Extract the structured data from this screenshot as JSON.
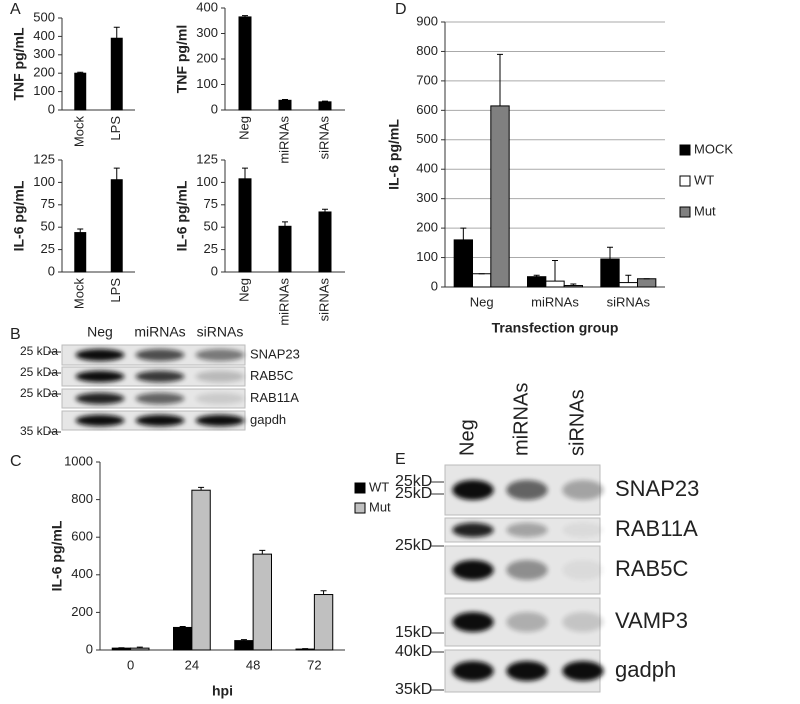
{
  "chart_data": [
    {
      "type": "bar",
      "panel": "A",
      "ylabel": "TNF pg/mL",
      "categories": [
        "Mock",
        "LPS"
      ],
      "values": [
        200,
        390
      ],
      "errors": [
        5,
        60
      ],
      "color": "#000000",
      "ylim": [
        0,
        500
      ],
      "yticks": [
        0,
        100,
        200,
        300,
        400,
        500
      ]
    },
    {
      "type": "bar",
      "ylabel": "TNF pg/ml",
      "categories": [
        "Neg",
        "miRNAs",
        "siRNAs"
      ],
      "values": [
        365,
        38,
        32
      ],
      "errors": [
        5,
        3,
        3
      ],
      "color": "#000000",
      "ylim": [
        0,
        400
      ],
      "yticks": [
        0,
        100,
        200,
        300,
        400
      ]
    },
    {
      "type": "bar",
      "ylabel": "IL-6 pg/mL",
      "categories": [
        "Mock",
        "LPS"
      ],
      "values": [
        44,
        103
      ],
      "errors": [
        4,
        13
      ],
      "color": "#000000",
      "ylim": [
        0,
        125
      ],
      "yticks": [
        0,
        25,
        50,
        75,
        100,
        125
      ]
    },
    {
      "type": "bar",
      "ylabel": "IL-6 pg/mL",
      "categories": [
        "Neg",
        "miRNAs",
        "siRNAs"
      ],
      "values": [
        104,
        51,
        67
      ],
      "errors": [
        12,
        5,
        3
      ],
      "color": "#000000",
      "ylim": [
        0,
        125
      ],
      "yticks": [
        0,
        25,
        50,
        75,
        100,
        125
      ]
    },
    {
      "type": "bar",
      "panel": "C",
      "ylabel": "IL-6 pg/mL",
      "xlabel": "hpi",
      "categories": [
        "0",
        "24",
        "48",
        "72"
      ],
      "series": [
        {
          "name": "WT",
          "color": "#000000",
          "values": [
            10,
            120,
            50,
            5
          ],
          "errors": [
            2,
            5,
            5,
            2
          ]
        },
        {
          "name": "Mut",
          "color": "#c0c0c0",
          "values": [
            10,
            850,
            510,
            295
          ],
          "errors": [
            5,
            15,
            20,
            20
          ]
        }
      ],
      "ylim": [
        0,
        1000
      ],
      "yticks": [
        0,
        200,
        400,
        600,
        800,
        1000
      ]
    },
    {
      "type": "bar",
      "panel": "D",
      "ylabel": "IL-6 pg/mL",
      "xlabel": "Transfection group",
      "categories": [
        "Neg",
        "miRNAs",
        "siRNAs"
      ],
      "series": [
        {
          "name": "MOCK",
          "color": "#000000",
          "values": [
            160,
            35,
            95
          ],
          "errors": [
            40,
            5,
            40
          ]
        },
        {
          "name": "WT",
          "color": "#ffffff",
          "values": [
            45,
            20,
            15
          ],
          "errors": [
            0,
            70,
            25
          ]
        },
        {
          "name": "Mut",
          "color": "#808080",
          "values": [
            615,
            5,
            28
          ],
          "errors": [
            175,
            5,
            0
          ]
        }
      ],
      "ylim": [
        0,
        900
      ],
      "yticks": [
        0,
        100,
        200,
        300,
        400,
        500,
        600,
        700,
        800,
        900
      ],
      "grid": true
    }
  ],
  "blots": [
    {
      "panel": "B",
      "lanes": [
        "Neg",
        "miRNAs",
        "siRNAs"
      ],
      "bands": [
        "SNAP23",
        "RAB5C",
        "RAB11A",
        "gapdh"
      ],
      "markers": [
        "25 kDa",
        "25 kDa",
        "25 kDa",
        "35 kDa"
      ]
    },
    {
      "panel": "E",
      "lanes": [
        "Neg",
        "miRNAs",
        "siRNAs"
      ],
      "bands": [
        "SNAP23",
        "RAB11A",
        "RAB5C",
        "VAMP3",
        "gadph"
      ],
      "markers": [
        "25kD",
        "25kD",
        "25kD",
        "15kD",
        "40kD",
        "35kD"
      ]
    }
  ]
}
